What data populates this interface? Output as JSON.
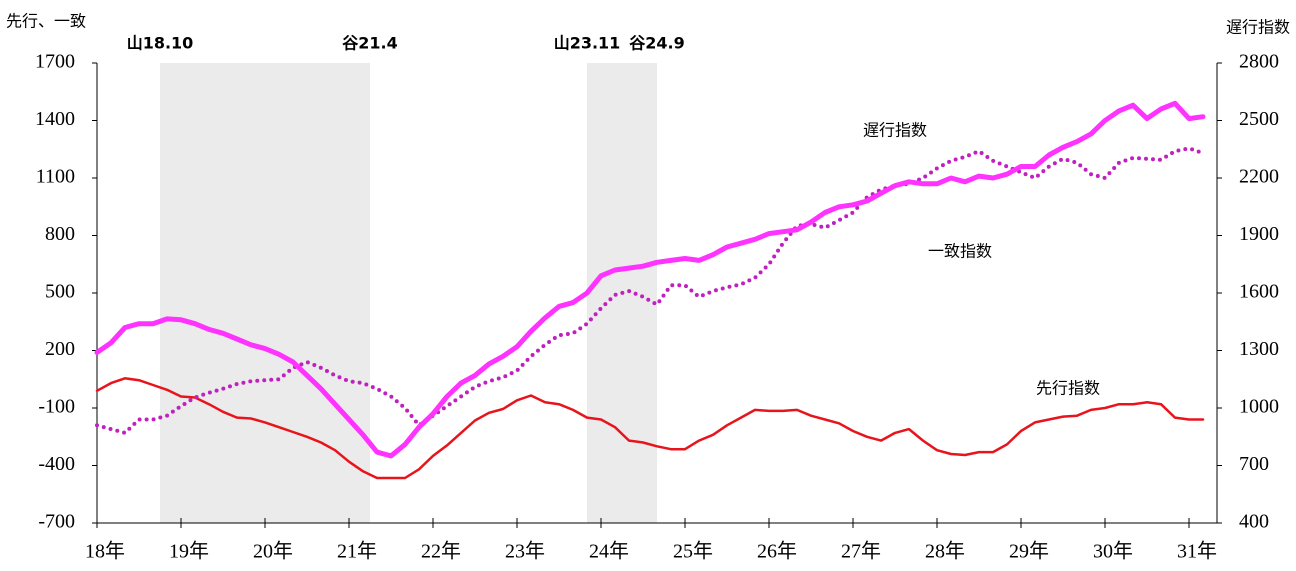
{
  "chart_data": {
    "type": "line",
    "y_label": "先行、一致",
    "y2_label": "遅行指数",
    "categories": [
      "18年",
      null,
      null,
      null,
      null,
      null,
      "19年",
      null,
      null,
      null,
      null,
      null,
      "20年",
      null,
      null,
      null,
      null,
      null,
      "21年",
      null,
      null,
      null,
      null,
      null,
      "22年",
      null,
      null,
      null,
      null,
      null,
      "23年",
      null,
      null,
      null,
      null,
      null,
      "24年",
      null,
      null,
      null,
      null,
      null,
      "25年",
      null,
      null,
      null,
      null,
      null,
      "26年",
      null,
      null,
      null,
      null,
      null,
      "27年",
      null,
      null,
      null,
      null,
      null,
      "28年",
      null,
      null,
      null,
      null,
      null,
      "29年",
      null,
      null,
      null,
      null,
      null,
      "30年",
      null,
      null,
      null,
      null,
      null,
      "31年",
      null
    ],
    "ylim": [
      -700,
      1700
    ],
    "yticks": [
      -700,
      -400,
      -100,
      200,
      500,
      800,
      1100,
      1400,
      1700
    ],
    "y2lim": [
      400,
      2800
    ],
    "y2ticks": [
      400,
      700,
      1000,
      1300,
      1600,
      1900,
      2200,
      2500,
      2800
    ],
    "shaded_periods": [
      {
        "start": "山18.10",
        "end": "谷21.4"
      },
      {
        "start": "山23.11",
        "end": "谷24.9"
      }
    ],
    "shade_color": "#ebebeb",
    "series": [
      {
        "name": "先行指数",
        "color": "#e8141c",
        "style": "solid",
        "values": [
          -10,
          30,
          55,
          45,
          20,
          -5,
          -40,
          -45,
          -80,
          -120,
          -150,
          -155,
          -175,
          -200,
          -225,
          -250,
          -280,
          -320,
          -380,
          -430,
          -465,
          -465,
          -465,
          -420,
          -350,
          -295,
          -230,
          -165,
          -125,
          -105,
          -60,
          -35,
          -70,
          -80,
          -110,
          -150,
          -160,
          -200,
          -270,
          -280,
          -300,
          -315,
          -315,
          -270,
          -240,
          -190,
          -150,
          -110,
          -115,
          -115,
          -110,
          -140,
          -160,
          -180,
          -220,
          -250,
          -270,
          -230,
          -210,
          -270,
          -320,
          -340,
          -345,
          -330,
          -330,
          -290,
          -220,
          -175,
          -160,
          -145,
          -140,
          -110,
          -100,
          -80,
          -80,
          -70,
          -80,
          -150,
          -160,
          -160
        ]
      },
      {
        "name": "一致指数",
        "color": "#c020c0",
        "style": "dotted",
        "values": [
          -190,
          -210,
          -230,
          -160,
          -160,
          -140,
          -90,
          -45,
          -20,
          0,
          25,
          40,
          45,
          50,
          110,
          140,
          110,
          70,
          40,
          30,
          0,
          -40,
          -100,
          -190,
          -140,
          -90,
          -40,
          10,
          40,
          60,
          95,
          170,
          230,
          280,
          290,
          340,
          420,
          490,
          510,
          480,
          440,
          540,
          540,
          480,
          510,
          530,
          545,
          580,
          650,
          760,
          850,
          860,
          840,
          880,
          920,
          1000,
          1040,
          1060,
          1070,
          1100,
          1150,
          1190,
          1210,
          1240,
          1190,
          1160,
          1130,
          1100,
          1160,
          1200,
          1180,
          1120,
          1100,
          1180,
          1205,
          1200,
          1195,
          1240,
          1255,
          1230
        ]
      },
      {
        "name": "遅行指数",
        "color": "#ff33ff",
        "style": "thick",
        "axis": "y2",
        "values": [
          1290,
          1340,
          1420,
          1440,
          1440,
          1465,
          1460,
          1440,
          1410,
          1390,
          1360,
          1330,
          1310,
          1280,
          1240,
          1170,
          1100,
          1020,
          940,
          860,
          770,
          750,
          810,
          900,
          970,
          1060,
          1130,
          1170,
          1230,
          1270,
          1320,
          1400,
          1470,
          1530,
          1550,
          1600,
          1690,
          1720,
          1730,
          1740,
          1760,
          1770,
          1780,
          1770,
          1800,
          1840,
          1860,
          1880,
          1910,
          1920,
          1930,
          1970,
          2020,
          2050,
          2060,
          2080,
          2120,
          2160,
          2180,
          2170,
          2170,
          2200,
          2180,
          2210,
          2200,
          2220,
          2260,
          2260,
          2320,
          2360,
          2390,
          2430,
          2500,
          2550,
          2580,
          2510,
          2560,
          2590,
          2510,
          2520
        ]
      }
    ]
  }
}
